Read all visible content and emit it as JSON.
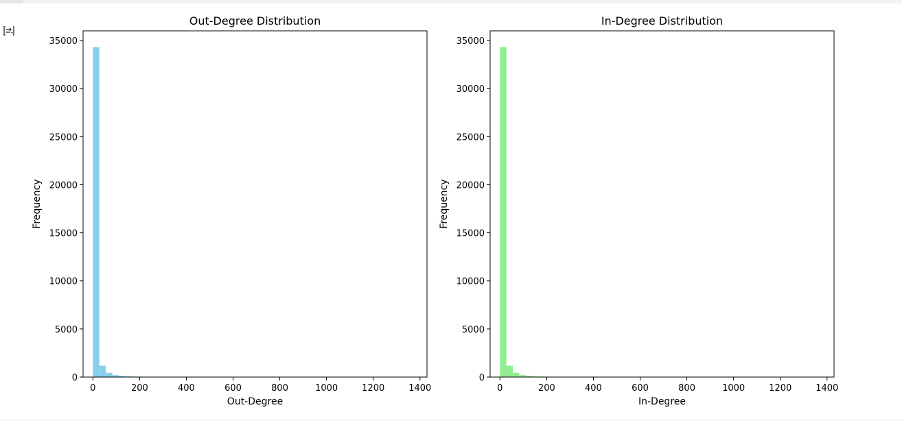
{
  "output": {
    "toggle_icon": "output-toggle-icon"
  },
  "colors": {
    "out_degree_bars": "#87ceeb",
    "in_degree_bars": "#90ee90",
    "axes": "#000000"
  },
  "chart_data": [
    {
      "type": "bar",
      "title": "Out-Degree Distribution",
      "xlabel": "Out-Degree",
      "ylabel": "Frequency",
      "xlim": [
        -42,
        1430
      ],
      "ylim": [
        0,
        36000
      ],
      "xticks": [
        0,
        200,
        400,
        600,
        800,
        1000,
        1200,
        1400
      ],
      "yticks": [
        0,
        5000,
        10000,
        15000,
        20000,
        25000,
        30000,
        35000
      ],
      "bin_width": 27.6,
      "bin_start": 0,
      "values": [
        34300,
        1180,
        440,
        200,
        130,
        80,
        55,
        45,
        35,
        30,
        25,
        18,
        12,
        8,
        6,
        5,
        4,
        3,
        3,
        2,
        2,
        2,
        1,
        1,
        1,
        1,
        1,
        1,
        1,
        1,
        1,
        1,
        1,
        1,
        1,
        1,
        1,
        1,
        1,
        1,
        1,
        1,
        1,
        1,
        1,
        1,
        1,
        1,
        1,
        1
      ],
      "grid": false
    },
    {
      "type": "bar",
      "title": "In-Degree Distribution",
      "xlabel": "In-Degree",
      "ylabel": "Frequency",
      "xlim": [
        -42,
        1430
      ],
      "ylim": [
        0,
        36000
      ],
      "xticks": [
        0,
        200,
        400,
        600,
        800,
        1000,
        1200,
        1400
      ],
      "yticks": [
        0,
        5000,
        10000,
        15000,
        20000,
        25000,
        30000,
        35000
      ],
      "bin_width": 27.6,
      "bin_start": 0,
      "values": [
        34300,
        1180,
        440,
        200,
        130,
        80,
        55,
        45,
        35,
        30,
        25,
        18,
        12,
        8,
        6,
        5,
        4,
        3,
        3,
        2,
        2,
        2,
        1,
        1,
        1,
        1,
        1,
        1,
        1,
        1,
        1,
        1,
        1,
        1,
        1,
        1,
        1,
        1,
        1,
        1,
        1,
        1,
        1,
        1,
        1,
        1,
        1,
        1,
        1,
        1
      ],
      "grid": false
    }
  ]
}
